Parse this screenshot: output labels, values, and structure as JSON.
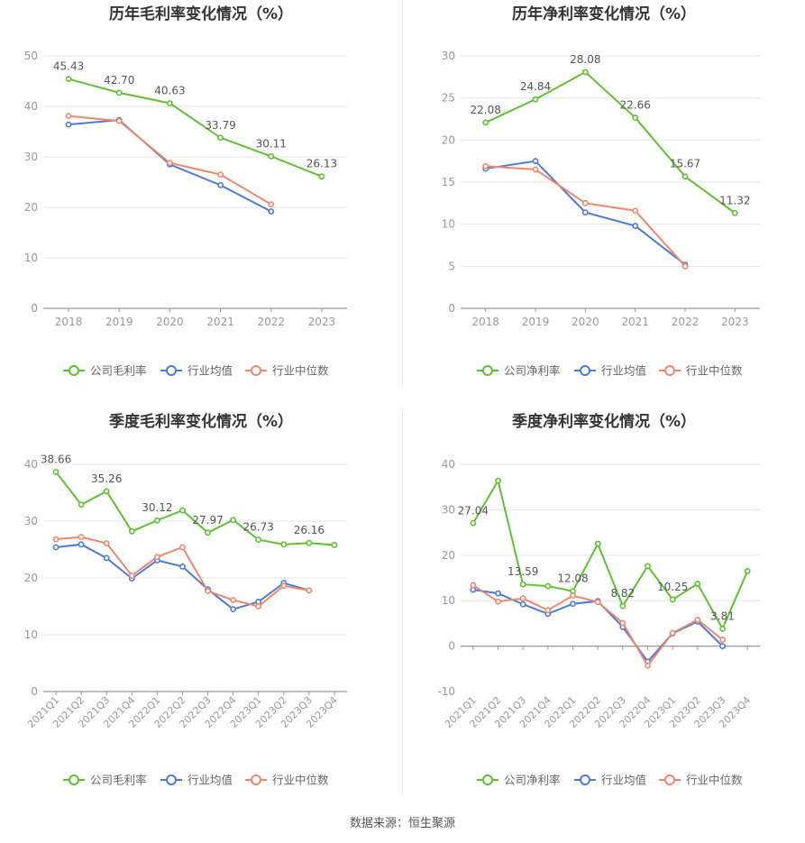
{
  "footer": {
    "source": "数据来源：恒生聚源"
  },
  "colors": {
    "company": "#5cc22e",
    "avg": "#4a7bdc",
    "median": "#f0876a",
    "grid": "#e6e6e6",
    "axis": "#999999",
    "title": "#333333",
    "tick": "#999999",
    "label": "#555555"
  },
  "chart_data": [
    {
      "type": "line",
      "title": "历年毛利率变化情况（%）",
      "categories": [
        "2018",
        "2019",
        "2020",
        "2021",
        "2022",
        "2023"
      ],
      "ylim": [
        0,
        50
      ],
      "yticks": [
        0,
        10,
        20,
        30,
        40,
        50
      ],
      "legend": "bottom",
      "series": [
        {
          "name": "公司毛利率",
          "color_key": "company",
          "labeled": true,
          "values": [
            45.43,
            42.7,
            40.63,
            33.79,
            30.11,
            26.13
          ]
        },
        {
          "name": "行业均值",
          "color_key": "avg",
          "labeled": false,
          "values": [
            36.4,
            37.3,
            28.5,
            24.4,
            19.2,
            null
          ]
        },
        {
          "name": "行业中位数",
          "color_key": "median",
          "labeled": false,
          "values": [
            38.1,
            37.1,
            28.8,
            26.5,
            20.6,
            null
          ]
        }
      ]
    },
    {
      "type": "line",
      "title": "历年净利率变化情况（%）",
      "categories": [
        "2018",
        "2019",
        "2020",
        "2021",
        "2022",
        "2023"
      ],
      "ylim": [
        0,
        30
      ],
      "yticks": [
        0,
        5,
        10,
        15,
        20,
        25,
        30
      ],
      "legend": "bottom",
      "series": [
        {
          "name": "公司净利率",
          "color_key": "company",
          "labeled": true,
          "values": [
            22.08,
            24.84,
            28.08,
            22.66,
            15.67,
            11.32
          ]
        },
        {
          "name": "行业均值",
          "color_key": "avg",
          "labeled": false,
          "values": [
            16.6,
            17.5,
            11.4,
            9.8,
            5.2,
            null
          ]
        },
        {
          "name": "行业中位数",
          "color_key": "median",
          "labeled": false,
          "values": [
            16.9,
            16.5,
            12.5,
            11.6,
            5.0,
            null
          ]
        }
      ]
    },
    {
      "type": "line",
      "title": "季度毛利率变化情况（%）",
      "categories": [
        "2021Q1",
        "2021Q2",
        "2021Q3",
        "2021Q4",
        "2022Q1",
        "2022Q2",
        "2022Q3",
        "2022Q4",
        "2023Q1",
        "2023Q2",
        "2023Q3",
        "2023Q4"
      ],
      "ylim": [
        0,
        40
      ],
      "yticks": [
        0,
        10,
        20,
        30,
        40
      ],
      "legend": "bottom",
      "series": [
        {
          "name": "公司毛利率",
          "color_key": "company",
          "labeled": true,
          "values": [
            38.66,
            32.9,
            35.26,
            28.2,
            30.12,
            31.9,
            27.97,
            30.2,
            26.73,
            25.9,
            26.16,
            25.8
          ],
          "label_indices": [
            0,
            2,
            4,
            6,
            8,
            10
          ]
        },
        {
          "name": "行业均值",
          "color_key": "avg",
          "labeled": false,
          "values": [
            25.4,
            25.9,
            23.5,
            19.9,
            23.1,
            22.0,
            18.0,
            14.5,
            15.8,
            19.1,
            17.8,
            null
          ]
        },
        {
          "name": "行业中位数",
          "color_key": "median",
          "labeled": false,
          "values": [
            26.8,
            27.2,
            26.1,
            20.4,
            23.7,
            25.4,
            17.7,
            16.1,
            15.0,
            18.6,
            17.8,
            null
          ]
        }
      ]
    },
    {
      "type": "line",
      "title": "季度净利率变化情况（%）",
      "categories": [
        "2021Q1",
        "2021Q2",
        "2021Q3",
        "2021Q4",
        "2022Q1",
        "2022Q2",
        "2022Q3",
        "2022Q4",
        "2023Q1",
        "2023Q2",
        "2023Q3",
        "2023Q4"
      ],
      "ylim": [
        -10,
        40
      ],
      "yticks": [
        -10,
        0,
        10,
        20,
        30,
        40
      ],
      "legend": "bottom",
      "series": [
        {
          "name": "公司净利率",
          "color_key": "company",
          "labeled": true,
          "values": [
            27.04,
            36.4,
            13.59,
            13.2,
            12.08,
            22.5,
            8.82,
            17.6,
            10.25,
            13.7,
            3.81,
            16.5
          ],
          "label_indices": [
            0,
            2,
            4,
            6,
            8,
            10
          ]
        },
        {
          "name": "行业均值",
          "color_key": "avg",
          "labeled": false,
          "values": [
            12.4,
            11.6,
            9.2,
            7.1,
            9.3,
            9.9,
            4.2,
            -3.4,
            2.8,
            5.4,
            0.0,
            null
          ]
        },
        {
          "name": "行业中位数",
          "color_key": "median",
          "labeled": false,
          "values": [
            13.4,
            9.8,
            10.5,
            7.9,
            11.1,
            9.7,
            5.1,
            -4.3,
            2.9,
            5.8,
            1.4,
            null
          ]
        }
      ]
    }
  ]
}
